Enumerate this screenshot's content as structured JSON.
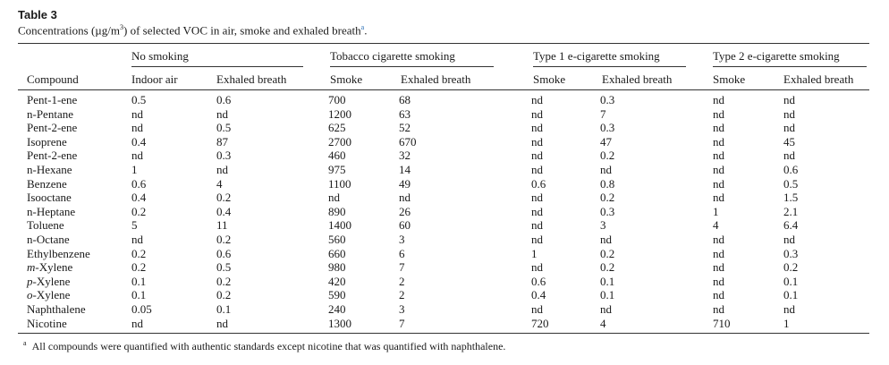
{
  "table": {
    "label": "Table 3",
    "caption_pre": "Concentrations (µg/m",
    "caption_sup": "3",
    "caption_post": ") of selected VOC in air, smoke and exhaled breath",
    "caption_mark": "a",
    "caption_end": ".",
    "groups": [
      "No smoking",
      "Tobacco cigarette smoking",
      "Type 1 e-cigarette smoking",
      "Type 2 e-cigarette smoking"
    ],
    "columns": [
      "Compound",
      "Indoor air",
      "Exhaled breath",
      "Smoke",
      "Exhaled breath",
      "Smoke",
      "Exhaled breath",
      "Smoke",
      "Exhaled breath"
    ],
    "rows": [
      {
        "prefix": "",
        "name": "Pent-1-ene",
        "v": [
          "0.5",
          "0.6",
          "700",
          "68",
          "nd",
          "0.3",
          "nd",
          "nd"
        ]
      },
      {
        "prefix": "",
        "name": "n-Pentane",
        "v": [
          "nd",
          "nd",
          "1200",
          "63",
          "nd",
          "7",
          "nd",
          "nd"
        ]
      },
      {
        "prefix": "",
        "name": "Pent-2-ene",
        "v": [
          "nd",
          "0.5",
          "625",
          "52",
          "nd",
          "0.3",
          "nd",
          "nd"
        ]
      },
      {
        "prefix": "",
        "name": "Isoprene",
        "v": [
          "0.4",
          "87",
          "2700",
          "670",
          "nd",
          "47",
          "nd",
          "45"
        ]
      },
      {
        "prefix": "",
        "name": "Pent-2-ene",
        "v": [
          "nd",
          "0.3",
          "460",
          "32",
          "nd",
          "0.2",
          "nd",
          "nd"
        ]
      },
      {
        "prefix": "",
        "name": "n-Hexane",
        "v": [
          "1",
          "nd",
          "975",
          "14",
          "nd",
          "nd",
          "nd",
          "0.6"
        ]
      },
      {
        "prefix": "",
        "name": "Benzene",
        "v": [
          "0.6",
          "4",
          "1100",
          "49",
          "0.6",
          "0.8",
          "nd",
          "0.5"
        ]
      },
      {
        "prefix": "",
        "name": "Isooctane",
        "v": [
          "0.4",
          "0.2",
          "nd",
          "nd",
          "nd",
          "0.2",
          "nd",
          "1.5"
        ]
      },
      {
        "prefix": "",
        "name": "n-Heptane",
        "v": [
          "0.2",
          "0.4",
          "890",
          "26",
          "nd",
          "0.3",
          "1",
          "2.1"
        ]
      },
      {
        "prefix": "",
        "name": "Toluene",
        "v": [
          "5",
          "11",
          "1400",
          "60",
          "nd",
          "3",
          "4",
          "6.4"
        ]
      },
      {
        "prefix": "",
        "name": "n-Octane",
        "v": [
          "nd",
          "0.2",
          "560",
          "3",
          "nd",
          "nd",
          "nd",
          "nd"
        ]
      },
      {
        "prefix": "",
        "name": "Ethylbenzene",
        "v": [
          "0.2",
          "0.6",
          "660",
          "6",
          "1",
          "0.2",
          "nd",
          "0.3"
        ]
      },
      {
        "prefix": "m",
        "name": "-Xylene",
        "v": [
          "0.2",
          "0.5",
          "980",
          "7",
          "nd",
          "0.2",
          "nd",
          "0.2"
        ]
      },
      {
        "prefix": "p",
        "name": "-Xylene",
        "v": [
          "0.1",
          "0.2",
          "420",
          "2",
          "0.6",
          "0.1",
          "nd",
          "0.1"
        ]
      },
      {
        "prefix": "o",
        "name": "-Xylene",
        "v": [
          "0.1",
          "0.2",
          "590",
          "2",
          "0.4",
          "0.1",
          "nd",
          "0.1"
        ]
      },
      {
        "prefix": "",
        "name": "Naphthalene",
        "v": [
          "0.05",
          "0.1",
          "240",
          "3",
          "nd",
          "nd",
          "nd",
          "nd"
        ]
      },
      {
        "prefix": "",
        "name": "Nicotine",
        "v": [
          "nd",
          "nd",
          "1300",
          "7",
          "720",
          "4",
          "710",
          "1"
        ]
      }
    ],
    "footnote_mark": "a",
    "footnote": "All compounds were quantified with authentic standards except nicotine that was quantified with naphthalene."
  }
}
